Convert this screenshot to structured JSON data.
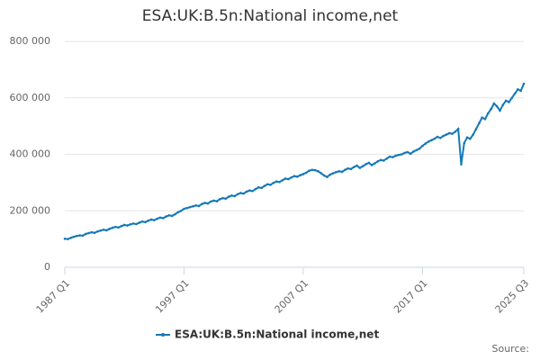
{
  "chart_data": {
    "type": "line",
    "title": "ESA:UK:B.5n:National income,net",
    "categories": [
      "1987 Q1",
      null,
      null,
      null,
      null,
      null,
      null,
      null,
      null,
      null,
      null,
      null,
      null,
      null,
      null,
      null,
      null,
      null,
      null,
      null,
      null,
      null,
      null,
      null,
      null,
      null,
      null,
      null,
      null,
      null,
      null,
      null,
      null,
      null,
      null,
      null,
      null,
      null,
      null,
      null,
      "1997 Q1",
      null,
      null,
      null,
      null,
      null,
      null,
      null,
      null,
      null,
      null,
      null,
      null,
      null,
      null,
      null,
      null,
      null,
      null,
      null,
      null,
      null,
      null,
      null,
      null,
      null,
      null,
      null,
      null,
      null,
      null,
      null,
      null,
      null,
      null,
      null,
      null,
      null,
      null,
      null,
      "2007 Q1",
      null,
      null,
      null,
      null,
      null,
      null,
      null,
      null,
      null,
      null,
      null,
      null,
      null,
      null,
      null,
      null,
      null,
      null,
      null,
      null,
      null,
      null,
      null,
      null,
      null,
      null,
      null,
      null,
      null,
      null,
      null,
      null,
      null,
      null,
      null,
      null,
      null,
      null,
      null,
      "2017 Q1",
      null,
      null,
      null,
      null,
      null,
      null,
      null,
      null,
      null,
      null,
      null,
      null,
      null,
      null,
      null,
      null,
      null,
      null,
      null,
      null,
      null,
      null,
      null,
      null,
      null,
      null,
      null,
      null,
      null,
      null,
      null,
      null,
      null,
      "2025 Q3"
    ],
    "series": [
      {
        "name": "ESA:UK:B.5n:National income,net",
        "color": "#1479b8",
        "values": [
          101000,
          100000,
          104000,
          108000,
          111000,
          113000,
          112000,
          118000,
          121000,
          124000,
          122000,
          127000,
          130000,
          133000,
          131000,
          136000,
          140000,
          143000,
          141000,
          146000,
          150000,
          148000,
          152000,
          155000,
          153000,
          158000,
          162000,
          160000,
          165000,
          169000,
          167000,
          172000,
          176000,
          174000,
          180000,
          184000,
          182000,
          188000,
          195000,
          200000,
          207000,
          210000,
          213000,
          216000,
          219000,
          217000,
          224000,
          228000,
          226000,
          233000,
          236000,
          234000,
          241000,
          245000,
          243000,
          250000,
          254000,
          252000,
          259000,
          263000,
          261000,
          268000,
          272000,
          270000,
          277000,
          283000,
          281000,
          288000,
          294000,
          292000,
          299000,
          304000,
          302000,
          308000,
          314000,
          312000,
          318000,
          323000,
          321000,
          326000,
          330000,
          335000,
          342000,
          345000,
          344000,
          340000,
          333000,
          325000,
          320000,
          328000,
          333000,
          337000,
          340000,
          338000,
          345000,
          350000,
          348000,
          355000,
          360000,
          352000,
          358000,
          365000,
          370000,
          362000,
          368000,
          375000,
          380000,
          378000,
          385000,
          392000,
          390000,
          395000,
          398000,
          400000,
          405000,
          408000,
          402000,
          410000,
          415000,
          420000,
          430000,
          438000,
          445000,
          450000,
          455000,
          462000,
          458000,
          465000,
          470000,
          475000,
          473000,
          480000,
          490000,
          365000,
          440000,
          460000,
          455000,
          470000,
          490000,
          510000,
          530000,
          525000,
          545000,
          560000,
          580000,
          570000,
          555000,
          575000,
          590000,
          585000,
          600000,
          615000,
          630000,
          625000,
          650000
        ]
      }
    ],
    "ylim": [
      0,
      800000
    ],
    "yticks": [
      0,
      {
        "value": 200000,
        "label": "200 000"
      },
      {
        "value": 400000,
        "label": "400 000"
      },
      {
        "value": 600000,
        "label": "600 000"
      },
      {
        "value": 800000,
        "label": "800 000"
      }
    ],
    "grid": true,
    "legend": "bottom",
    "source": "Source:"
  }
}
